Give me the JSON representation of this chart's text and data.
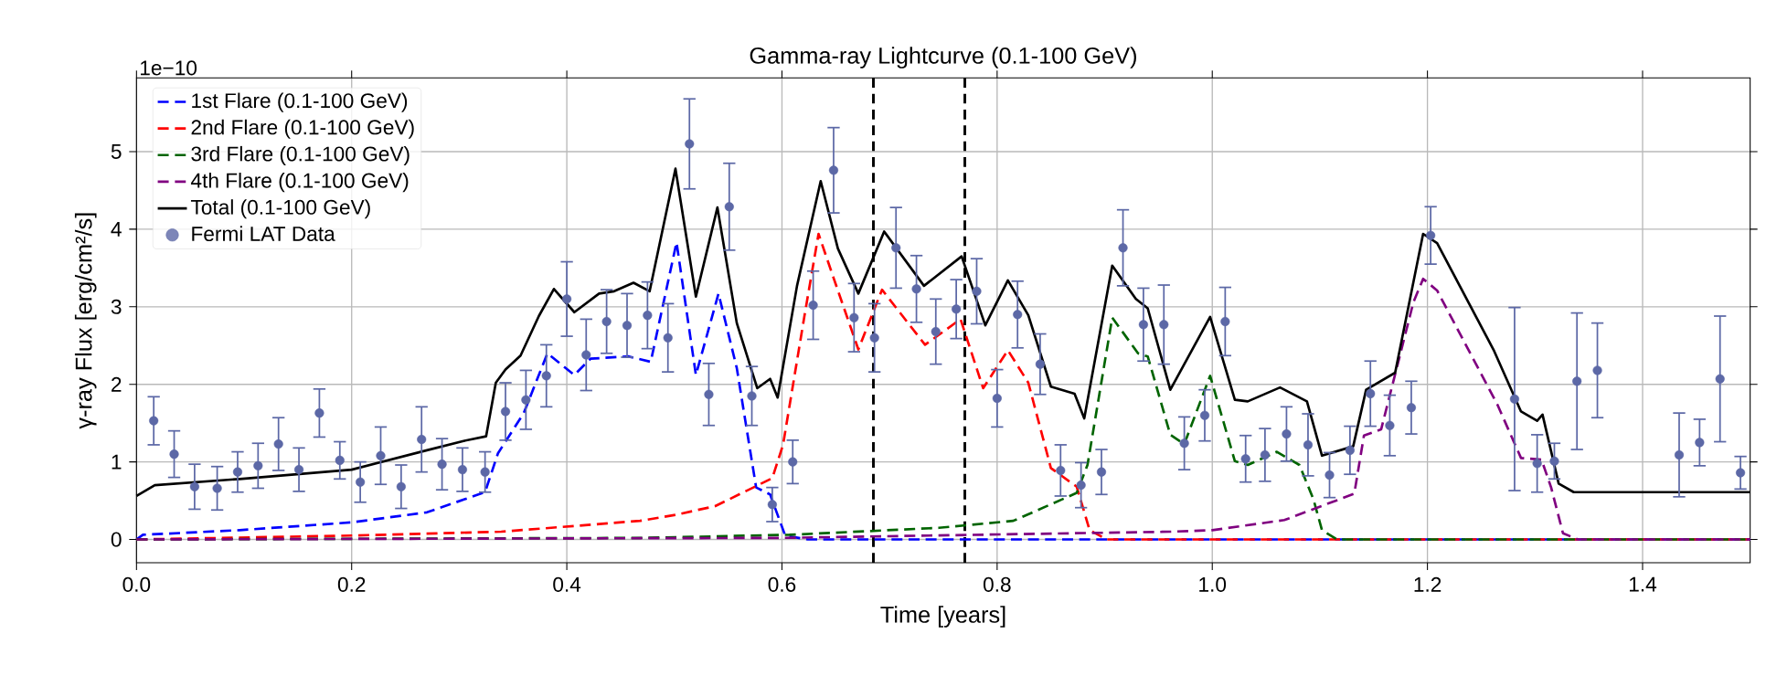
{
  "chart_data": {
    "type": "line",
    "title": "Gamma-ray Lightcurve (0.1-100 GeV)",
    "xlabel": "Time [years]",
    "ylabel": "γ-ray Flux [erg/cm²/s]",
    "annotations": [
      "1e−10"
    ],
    "xlim": [
      0,
      1.5
    ],
    "ylim": [
      -0.3,
      5.95
    ],
    "xticks": [
      {
        "value": 0,
        "label": "0.0"
      },
      0.2,
      0.4,
      0.6,
      0.8,
      {
        "value": 1,
        "label": "1.0"
      },
      1.2,
      1.4
    ],
    "yticks": [
      0,
      1,
      2,
      3,
      4,
      5
    ],
    "grid": true,
    "legend": "top left",
    "ref_lines": [
      {
        "axis": "x",
        "value": 0.685,
        "color": "#000000",
        "line_style": "dashed"
      },
      {
        "axis": "x",
        "value": 0.77,
        "color": "#000000",
        "line_style": "dashed"
      }
    ],
    "series": [
      {
        "name": "1st Flare (0.1-100 GeV)",
        "color": "#0000ff",
        "line_style": "dashed",
        "marker": "none",
        "x": [
          0,
          0.006,
          0.096,
          0.2,
          0.27,
          0.324,
          0.336,
          0.36,
          0.382,
          0.407,
          0.422,
          0.457,
          0.478,
          0.502,
          0.52,
          0.541,
          0.558,
          0.576,
          0.589,
          0.603,
          0.624,
          1.5
        ],
        "values": [
          0,
          0.06,
          0.12,
          0.22,
          0.35,
          0.61,
          1.11,
          1.63,
          2.4,
          2.12,
          2.33,
          2.36,
          2.29,
          3.83,
          2.12,
          3.17,
          2.21,
          0.67,
          0.58,
          0.05,
          0,
          0
        ]
      },
      {
        "name": "2nd Flare (0.1-100 GeV)",
        "color": "#ff0000",
        "line_style": "dashed",
        "marker": "none",
        "x": [
          0,
          0.2,
          0.339,
          0.468,
          0.502,
          0.538,
          0.591,
          0.601,
          0.621,
          0.634,
          0.648,
          0.671,
          0.693,
          0.733,
          0.766,
          0.787,
          0.81,
          0.829,
          0.85,
          0.874,
          0.886,
          0.902,
          1.5
        ],
        "values": [
          0,
          0.05,
          0.1,
          0.24,
          0.32,
          0.43,
          0.79,
          1.22,
          2.89,
          3.94,
          3.37,
          2.45,
          3.22,
          2.51,
          2.84,
          1.95,
          2.44,
          2.02,
          0.92,
          0.68,
          0.12,
          0,
          0
        ]
      },
      {
        "name": "3rd Flare (0.1-100 GeV)",
        "color": "#006400",
        "line_style": "dashed",
        "marker": "none",
        "x": [
          0,
          0.468,
          0.607,
          0.746,
          0.815,
          0.874,
          0.884,
          0.907,
          0.931,
          0.94,
          0.961,
          0.974,
          0.998,
          1.021,
          1.033,
          1.06,
          1.081,
          1.094,
          1.102,
          1.116,
          1.5
        ],
        "values": [
          0,
          0.02,
          0.06,
          0.15,
          0.24,
          0.6,
          0.96,
          2.86,
          2.4,
          2.36,
          1.35,
          1.23,
          2.11,
          1.01,
          0.96,
          1.13,
          0.96,
          0.52,
          0.12,
          0,
          0
        ]
      },
      {
        "name": "4th Flare (0.1-100 GeV)",
        "color": "#800080",
        "line_style": "dashed",
        "marker": "none",
        "x": [
          0,
          0.6,
          0.961,
          1.0,
          1.067,
          1.132,
          1.141,
          1.157,
          1.187,
          1.196,
          1.209,
          1.265,
          1.287,
          1.306,
          1.315,
          1.326,
          1.34,
          1.5
        ],
        "values": [
          0,
          0.02,
          0.1,
          0.12,
          0.25,
          0.59,
          1.34,
          1.42,
          3.06,
          3.36,
          3.21,
          1.74,
          1.05,
          1.03,
          0.67,
          0.08,
          0,
          0
        ]
      },
      {
        "name": "Total (0.1-100 GeV)",
        "color": "#000000",
        "line_style": "solid",
        "marker": "none",
        "x": [
          0,
          0.017,
          0.096,
          0.2,
          0.27,
          0.304,
          0.325,
          0.334,
          0.343,
          0.357,
          0.374,
          0.388,
          0.407,
          0.43,
          0.444,
          0.462,
          0.477,
          0.501,
          0.52,
          0.54,
          0.558,
          0.577,
          0.589,
          0.596,
          0.614,
          0.636,
          0.652,
          0.671,
          0.695,
          0.732,
          0.767,
          0.789,
          0.81,
          0.829,
          0.85,
          0.872,
          0.881,
          0.907,
          0.929,
          0.94,
          0.961,
          0.998,
          1.021,
          1.033,
          1.063,
          1.088,
          1.102,
          1.131,
          1.143,
          1.17,
          1.196,
          1.209,
          1.262,
          1.287,
          1.302,
          1.307,
          1.322,
          1.336,
          1.5
        ],
        "values": [
          0.56,
          0.7,
          0.78,
          0.9,
          1.15,
          1.27,
          1.33,
          2.02,
          2.19,
          2.37,
          2.88,
          3.23,
          2.93,
          3.17,
          3.2,
          3.31,
          3.2,
          4.78,
          3.13,
          4.28,
          2.79,
          1.95,
          2.07,
          1.83,
          3.27,
          4.62,
          3.75,
          3.17,
          3.97,
          3.27,
          3.65,
          2.76,
          3.34,
          2.89,
          1.97,
          1.88,
          1.56,
          3.53,
          3.1,
          2.98,
          1.93,
          2.87,
          1.8,
          1.78,
          1.96,
          1.78,
          1.08,
          1.2,
          1.93,
          2.15,
          3.94,
          3.82,
          2.43,
          1.65,
          1.53,
          1.61,
          0.72,
          0.61,
          0.61
        ]
      },
      {
        "name": "Fermi LAT Data",
        "type": "scatter",
        "color": "#5c68a6",
        "marker": "circle",
        "x": [
          0.016,
          0.035,
          0.054,
          0.075,
          0.094,
          0.113,
          0.132,
          0.151,
          0.17,
          0.189,
          0.208,
          0.227,
          0.246,
          0.265,
          0.284,
          0.303,
          0.324,
          0.343,
          0.362,
          0.381,
          0.4,
          0.418,
          0.437,
          0.456,
          0.475,
          0.494,
          0.514,
          0.532,
          0.551,
          0.572,
          0.591,
          0.61,
          0.629,
          0.648,
          0.667,
          0.686,
          0.706,
          0.725,
          0.743,
          0.762,
          0.781,
          0.8,
          0.819,
          0.84,
          0.859,
          0.878,
          0.897,
          0.917,
          0.936,
          0.955,
          0.974,
          0.993,
          1.012,
          1.031,
          1.049,
          1.069,
          1.089,
          1.109,
          1.128,
          1.147,
          1.165,
          1.185,
          1.203,
          1.281,
          1.302,
          1.318,
          1.339,
          1.358,
          1.434,
          1.453,
          1.472,
          1.491
        ],
        "values": [
          1.53,
          1.1,
          0.68,
          0.66,
          0.87,
          0.95,
          1.23,
          0.9,
          1.63,
          1.02,
          0.74,
          1.08,
          0.68,
          1.29,
          0.97,
          0.9,
          0.87,
          1.65,
          1.8,
          2.11,
          3.1,
          2.38,
          2.81,
          2.76,
          2.89,
          2.6,
          5.1,
          1.87,
          4.29,
          1.85,
          0.45,
          1.0,
          3.02,
          4.76,
          2.86,
          2.6,
          3.76,
          3.23,
          2.68,
          2.97,
          3.2,
          1.82,
          2.9,
          2.26,
          0.89,
          0.7,
          0.87,
          3.76,
          2.77,
          2.77,
          1.24,
          1.6,
          2.81,
          1.04,
          1.09,
          1.36,
          1.22,
          0.83,
          1.15,
          1.88,
          1.47,
          1.7,
          3.92,
          1.81,
          0.98,
          1.01,
          2.04,
          2.18,
          1.09,
          1.25,
          2.07,
          0.86
        ],
        "errors": [
          0.31,
          0.3,
          0.29,
          0.28,
          0.26,
          0.29,
          0.34,
          0.28,
          0.31,
          0.24,
          0.26,
          0.37,
          0.28,
          0.42,
          0.33,
          0.28,
          0.26,
          0.37,
          0.38,
          0.4,
          0.48,
          0.46,
          0.41,
          0.41,
          0.43,
          0.44,
          0.58,
          0.4,
          0.56,
          0.38,
          0.22,
          0.28,
          0.44,
          0.55,
          0.44,
          0.44,
          0.52,
          0.43,
          0.42,
          0.38,
          0.42,
          0.37,
          0.43,
          0.39,
          0.33,
          0.29,
          0.29,
          0.49,
          0.47,
          0.51,
          0.34,
          0.33,
          0.44,
          0.3,
          0.34,
          0.35,
          0.4,
          0.29,
          0.31,
          0.42,
          0.39,
          0.34,
          0.37,
          1.18,
          0.37,
          0.23,
          0.88,
          0.61,
          0.54,
          0.3,
          0.81,
          0.21
        ]
      }
    ]
  }
}
